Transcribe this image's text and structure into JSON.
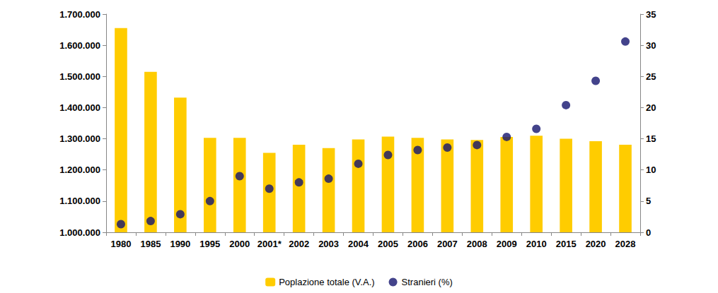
{
  "chart_data": {
    "type": "bar",
    "categories": [
      "1980",
      "1985",
      "1990",
      "1995",
      "2000",
      "2001*",
      "2002",
      "2003",
      "2004",
      "2005",
      "2006",
      "2007",
      "2008",
      "2009",
      "2010",
      "2015",
      "2020",
      "2028"
    ],
    "series": [
      {
        "name": "Poplazione totale (V.A.)",
        "type": "bar",
        "color": "#FFCC00",
        "values": [
          1655000,
          1515000,
          1432000,
          1303000,
          1303000,
          1255000,
          1281000,
          1270000,
          1298000,
          1307000,
          1303000,
          1298000,
          1296000,
          1306000,
          1310000,
          1300000,
          1292000,
          1281000
        ]
      },
      {
        "name": "Stranieri (%)",
        "type": "scatter",
        "axis": "y2",
        "color": "#14146E",
        "marker": "circle",
        "values": [
          1.3,
          1.8,
          2.9,
          5,
          9,
          7,
          8,
          8.6,
          11,
          12.4,
          13.2,
          13.6,
          14,
          15.3,
          16.6,
          20.4,
          24.3,
          30.6
        ]
      }
    ],
    "ylim": [
      1000000,
      1700000
    ],
    "yticks": [
      {
        "value": 1000000,
        "label": "1.000.000"
      },
      {
        "value": 1100000,
        "label": "1.100.000"
      },
      {
        "value": 1200000,
        "label": "1.200.000"
      },
      {
        "value": 1300000,
        "label": "1.300.000"
      },
      {
        "value": 1400000,
        "label": "1.400.000"
      },
      {
        "value": 1500000,
        "label": "1.500.000"
      },
      {
        "value": 1600000,
        "label": "1.600.000"
      },
      {
        "value": 1700000,
        "label": "1.700.000"
      }
    ],
    "y2lim": [
      0,
      35
    ],
    "y2ticks": [
      0,
      5,
      10,
      15,
      20,
      25,
      30,
      35
    ],
    "grid": false,
    "legend": "bottom"
  }
}
